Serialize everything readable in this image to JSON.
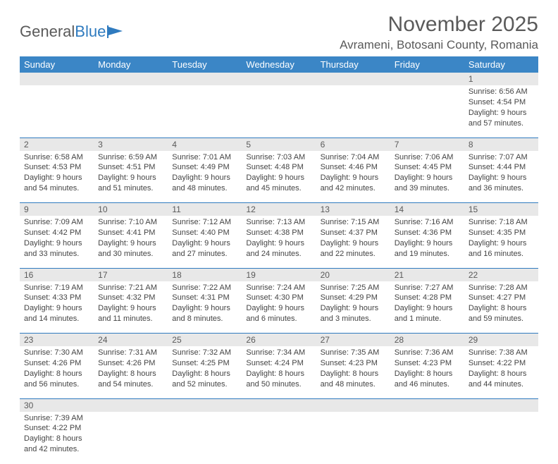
{
  "logo": {
    "text1": "General",
    "text2": "Blue"
  },
  "title": "November 2025",
  "location": "Avrameni, Botosani County, Romania",
  "colors": {
    "header_bg": "#3b86c6",
    "header_text": "#ffffff",
    "daynum_bg": "#e8e8e8",
    "border": "#2f7bbf",
    "text": "#444444",
    "title": "#5a5a5a"
  },
  "day_headers": [
    "Sunday",
    "Monday",
    "Tuesday",
    "Wednesday",
    "Thursday",
    "Friday",
    "Saturday"
  ],
  "weeks": [
    {
      "nums": [
        "",
        "",
        "",
        "",
        "",
        "",
        "1"
      ],
      "cells": [
        null,
        null,
        null,
        null,
        null,
        null,
        {
          "sr": "Sunrise: 6:56 AM",
          "ss": "Sunset: 4:54 PM",
          "d1": "Daylight: 9 hours",
          "d2": "and 57 minutes."
        }
      ]
    },
    {
      "nums": [
        "2",
        "3",
        "4",
        "5",
        "6",
        "7",
        "8"
      ],
      "cells": [
        {
          "sr": "Sunrise: 6:58 AM",
          "ss": "Sunset: 4:53 PM",
          "d1": "Daylight: 9 hours",
          "d2": "and 54 minutes."
        },
        {
          "sr": "Sunrise: 6:59 AM",
          "ss": "Sunset: 4:51 PM",
          "d1": "Daylight: 9 hours",
          "d2": "and 51 minutes."
        },
        {
          "sr": "Sunrise: 7:01 AM",
          "ss": "Sunset: 4:49 PM",
          "d1": "Daylight: 9 hours",
          "d2": "and 48 minutes."
        },
        {
          "sr": "Sunrise: 7:03 AM",
          "ss": "Sunset: 4:48 PM",
          "d1": "Daylight: 9 hours",
          "d2": "and 45 minutes."
        },
        {
          "sr": "Sunrise: 7:04 AM",
          "ss": "Sunset: 4:46 PM",
          "d1": "Daylight: 9 hours",
          "d2": "and 42 minutes."
        },
        {
          "sr": "Sunrise: 7:06 AM",
          "ss": "Sunset: 4:45 PM",
          "d1": "Daylight: 9 hours",
          "d2": "and 39 minutes."
        },
        {
          "sr": "Sunrise: 7:07 AM",
          "ss": "Sunset: 4:44 PM",
          "d1": "Daylight: 9 hours",
          "d2": "and 36 minutes."
        }
      ]
    },
    {
      "nums": [
        "9",
        "10",
        "11",
        "12",
        "13",
        "14",
        "15"
      ],
      "cells": [
        {
          "sr": "Sunrise: 7:09 AM",
          "ss": "Sunset: 4:42 PM",
          "d1": "Daylight: 9 hours",
          "d2": "and 33 minutes."
        },
        {
          "sr": "Sunrise: 7:10 AM",
          "ss": "Sunset: 4:41 PM",
          "d1": "Daylight: 9 hours",
          "d2": "and 30 minutes."
        },
        {
          "sr": "Sunrise: 7:12 AM",
          "ss": "Sunset: 4:40 PM",
          "d1": "Daylight: 9 hours",
          "d2": "and 27 minutes."
        },
        {
          "sr": "Sunrise: 7:13 AM",
          "ss": "Sunset: 4:38 PM",
          "d1": "Daylight: 9 hours",
          "d2": "and 24 minutes."
        },
        {
          "sr": "Sunrise: 7:15 AM",
          "ss": "Sunset: 4:37 PM",
          "d1": "Daylight: 9 hours",
          "d2": "and 22 minutes."
        },
        {
          "sr": "Sunrise: 7:16 AM",
          "ss": "Sunset: 4:36 PM",
          "d1": "Daylight: 9 hours",
          "d2": "and 19 minutes."
        },
        {
          "sr": "Sunrise: 7:18 AM",
          "ss": "Sunset: 4:35 PM",
          "d1": "Daylight: 9 hours",
          "d2": "and 16 minutes."
        }
      ]
    },
    {
      "nums": [
        "16",
        "17",
        "18",
        "19",
        "20",
        "21",
        "22"
      ],
      "cells": [
        {
          "sr": "Sunrise: 7:19 AM",
          "ss": "Sunset: 4:33 PM",
          "d1": "Daylight: 9 hours",
          "d2": "and 14 minutes."
        },
        {
          "sr": "Sunrise: 7:21 AM",
          "ss": "Sunset: 4:32 PM",
          "d1": "Daylight: 9 hours",
          "d2": "and 11 minutes."
        },
        {
          "sr": "Sunrise: 7:22 AM",
          "ss": "Sunset: 4:31 PM",
          "d1": "Daylight: 9 hours",
          "d2": "and 8 minutes."
        },
        {
          "sr": "Sunrise: 7:24 AM",
          "ss": "Sunset: 4:30 PM",
          "d1": "Daylight: 9 hours",
          "d2": "and 6 minutes."
        },
        {
          "sr": "Sunrise: 7:25 AM",
          "ss": "Sunset: 4:29 PM",
          "d1": "Daylight: 9 hours",
          "d2": "and 3 minutes."
        },
        {
          "sr": "Sunrise: 7:27 AM",
          "ss": "Sunset: 4:28 PM",
          "d1": "Daylight: 9 hours",
          "d2": "and 1 minute."
        },
        {
          "sr": "Sunrise: 7:28 AM",
          "ss": "Sunset: 4:27 PM",
          "d1": "Daylight: 8 hours",
          "d2": "and 59 minutes."
        }
      ]
    },
    {
      "nums": [
        "23",
        "24",
        "25",
        "26",
        "27",
        "28",
        "29"
      ],
      "cells": [
        {
          "sr": "Sunrise: 7:30 AM",
          "ss": "Sunset: 4:26 PM",
          "d1": "Daylight: 8 hours",
          "d2": "and 56 minutes."
        },
        {
          "sr": "Sunrise: 7:31 AM",
          "ss": "Sunset: 4:26 PM",
          "d1": "Daylight: 8 hours",
          "d2": "and 54 minutes."
        },
        {
          "sr": "Sunrise: 7:32 AM",
          "ss": "Sunset: 4:25 PM",
          "d1": "Daylight: 8 hours",
          "d2": "and 52 minutes."
        },
        {
          "sr": "Sunrise: 7:34 AM",
          "ss": "Sunset: 4:24 PM",
          "d1": "Daylight: 8 hours",
          "d2": "and 50 minutes."
        },
        {
          "sr": "Sunrise: 7:35 AM",
          "ss": "Sunset: 4:23 PM",
          "d1": "Daylight: 8 hours",
          "d2": "and 48 minutes."
        },
        {
          "sr": "Sunrise: 7:36 AM",
          "ss": "Sunset: 4:23 PM",
          "d1": "Daylight: 8 hours",
          "d2": "and 46 minutes."
        },
        {
          "sr": "Sunrise: 7:38 AM",
          "ss": "Sunset: 4:22 PM",
          "d1": "Daylight: 8 hours",
          "d2": "and 44 minutes."
        }
      ]
    },
    {
      "nums": [
        "30",
        "",
        "",
        "",
        "",
        "",
        ""
      ],
      "cells": [
        {
          "sr": "Sunrise: 7:39 AM",
          "ss": "Sunset: 4:22 PM",
          "d1": "Daylight: 8 hours",
          "d2": "and 42 minutes."
        },
        null,
        null,
        null,
        null,
        null,
        null
      ]
    }
  ]
}
